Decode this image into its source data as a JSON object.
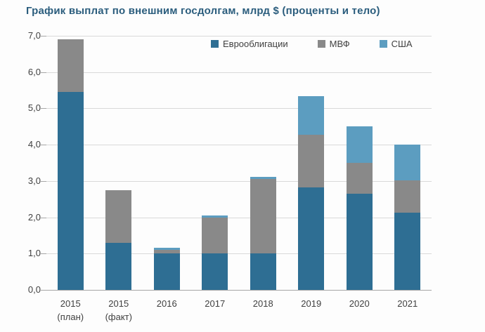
{
  "title": "График выплат по внешним госдолгам, млрд $ (проценты и тело)",
  "colors": {
    "title": "#2b5d7d",
    "eurobonds": "#2e6e93",
    "imf": "#898989",
    "usa": "#5c9dc0",
    "gridline": "#d9d9d9",
    "axis_line": "#a6a6a6",
    "axis_text": "#404040",
    "background": "#fdfdfd"
  },
  "chart_data": {
    "type": "bar",
    "stacked": true,
    "title": "График выплат по внешним госдолгам, млрд $ (проценты и тело)",
    "xlabel": "",
    "ylabel": "",
    "ylim": [
      0,
      7
    ],
    "grid": true,
    "legend_position": "top-inside",
    "yticks": [
      {
        "value": 0,
        "label": "0,0"
      },
      {
        "value": 1,
        "label": "1,0"
      },
      {
        "value": 2,
        "label": "2,0"
      },
      {
        "value": 3,
        "label": "3,0"
      },
      {
        "value": 4,
        "label": "4,0"
      },
      {
        "value": 5,
        "label": "5,0"
      },
      {
        "value": 6,
        "label": "6,0"
      },
      {
        "value": 7,
        "label": "7,0"
      }
    ],
    "categories": [
      {
        "label": "2015",
        "sublabel": "(план)"
      },
      {
        "label": "2015",
        "sublabel": "(факт)"
      },
      {
        "label": "2016",
        "sublabel": ""
      },
      {
        "label": "2017",
        "sublabel": ""
      },
      {
        "label": "2018",
        "sublabel": ""
      },
      {
        "label": "2019",
        "sublabel": ""
      },
      {
        "label": "2020",
        "sublabel": ""
      },
      {
        "label": "2021",
        "sublabel": ""
      }
    ],
    "series": [
      {
        "key": "eurobonds",
        "name": "Еврооблигации",
        "color": "#2e6e93",
        "values": [
          5.45,
          1.3,
          1.0,
          1.0,
          1.0,
          2.82,
          2.65,
          2.13
        ]
      },
      {
        "key": "imf",
        "name": "МВФ",
        "color": "#898989",
        "values": [
          1.45,
          1.45,
          0.1,
          1.0,
          2.05,
          1.46,
          0.85,
          0.88
        ]
      },
      {
        "key": "usa",
        "name": "США",
        "color": "#5c9dc0",
        "values": [
          0,
          0,
          0.07,
          0.05,
          0.06,
          1.05,
          1.0,
          1.0
        ]
      }
    ],
    "totals": [
      6.9,
      2.75,
      1.17,
      2.05,
      3.11,
      5.33,
      4.5,
      4.01
    ]
  }
}
